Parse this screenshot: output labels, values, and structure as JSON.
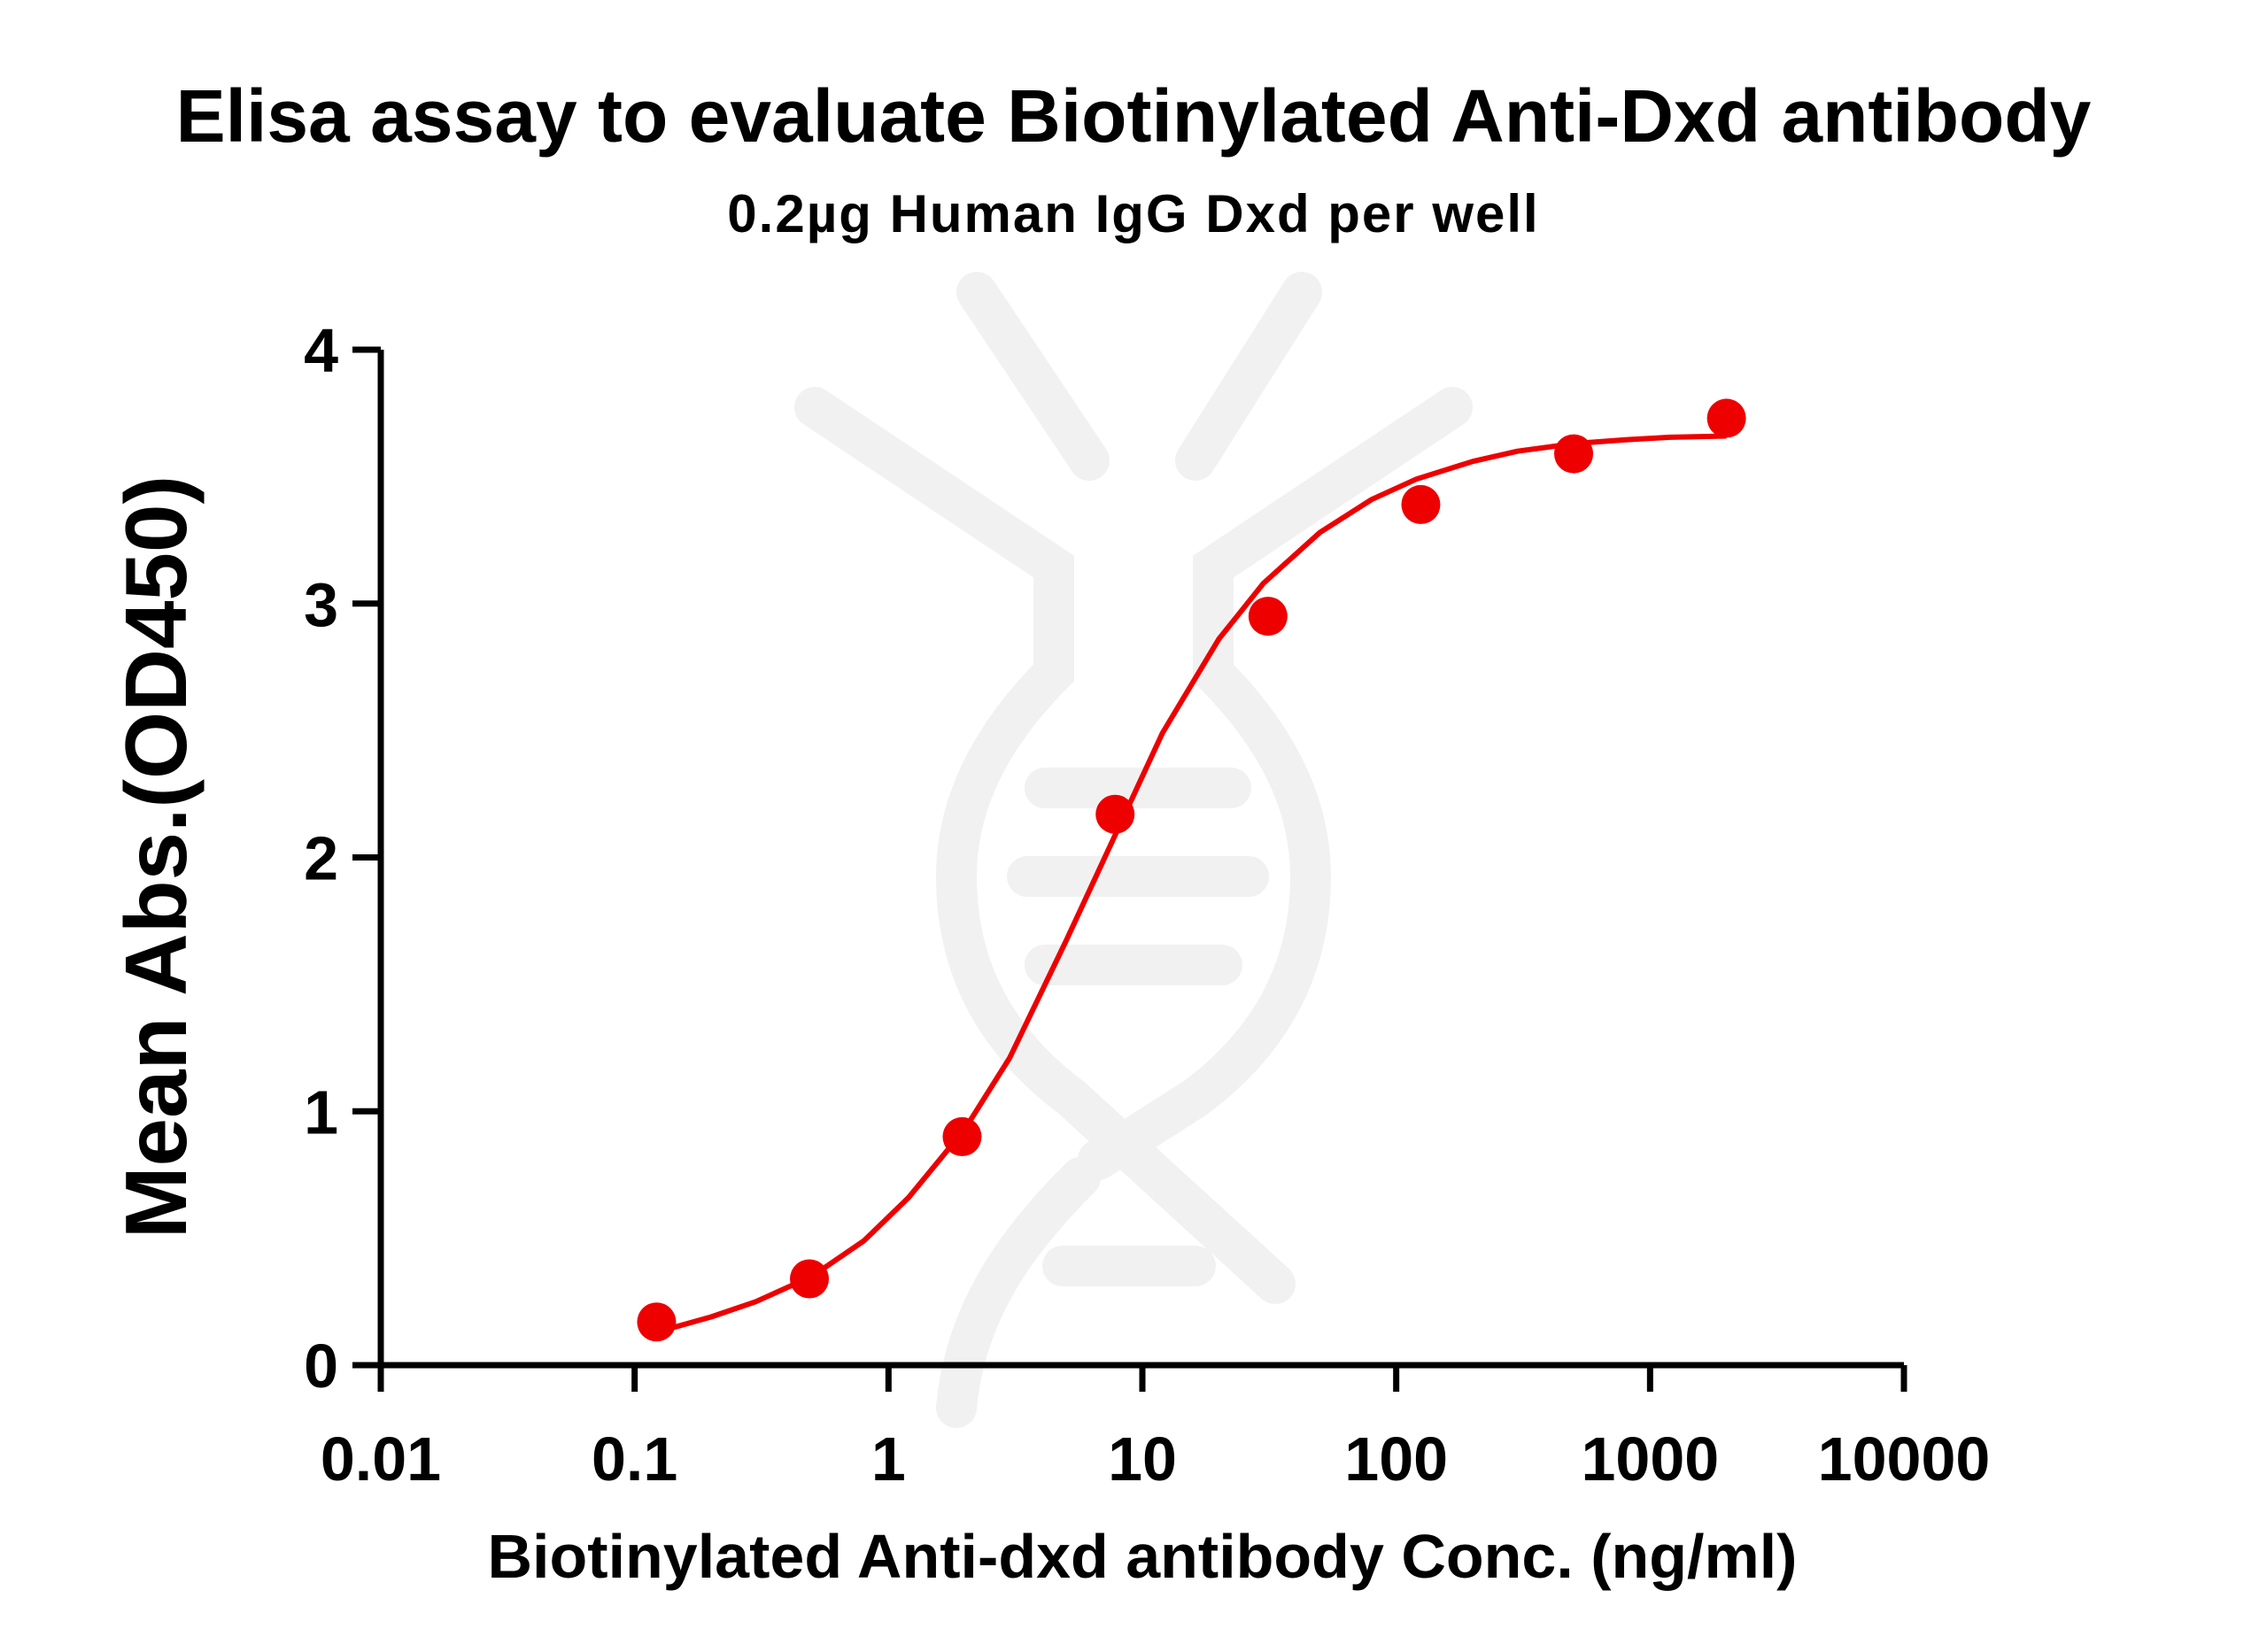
{
  "chart_data": {
    "type": "scatter",
    "title": "Elisa assay to evaluate Biotinylated Anti-Dxd antibody",
    "subtitle": "0.2µg Human IgG Dxd per well",
    "xlabel": "Biotinylated Anti-dxd antibody Conc. (ng/ml)",
    "ylabel": "Mean Abs.(OD450)",
    "x_scale": "log",
    "xlim": [
      0.01,
      10000
    ],
    "ylim": [
      0,
      4
    ],
    "x_ticks": [
      "0.01",
      "0.1",
      "1",
      "10",
      "100",
      "1000",
      "10000"
    ],
    "y_ticks": [
      "0",
      "1",
      "2",
      "3",
      "4"
    ],
    "grid": false,
    "legend": "none",
    "series": [
      {
        "color": "#ee0000",
        "x": [
          0.122,
          0.488,
          1.95,
          7.81,
          31.25,
          125,
          500,
          2000
        ],
        "y": [
          0.17,
          0.34,
          0.9,
          2.17,
          2.95,
          3.39,
          3.59,
          3.73
        ],
        "fit": "sigmoidal 4PL",
        "fit_curve": {
          "x": [
            0.122,
            0.2,
            0.3,
            0.5,
            0.8,
            1.2,
            2,
            3,
            5,
            8,
            12,
            20,
            30,
            50,
            80,
            120,
            200,
            300,
            500,
            800,
            1200,
            2000
          ],
          "y": [
            0.13,
            0.19,
            0.25,
            0.35,
            0.49,
            0.66,
            0.93,
            1.21,
            1.67,
            2.11,
            2.49,
            2.86,
            3.08,
            3.28,
            3.41,
            3.49,
            3.56,
            3.6,
            3.63,
            3.645,
            3.655,
            3.66
          ]
        }
      }
    ]
  }
}
